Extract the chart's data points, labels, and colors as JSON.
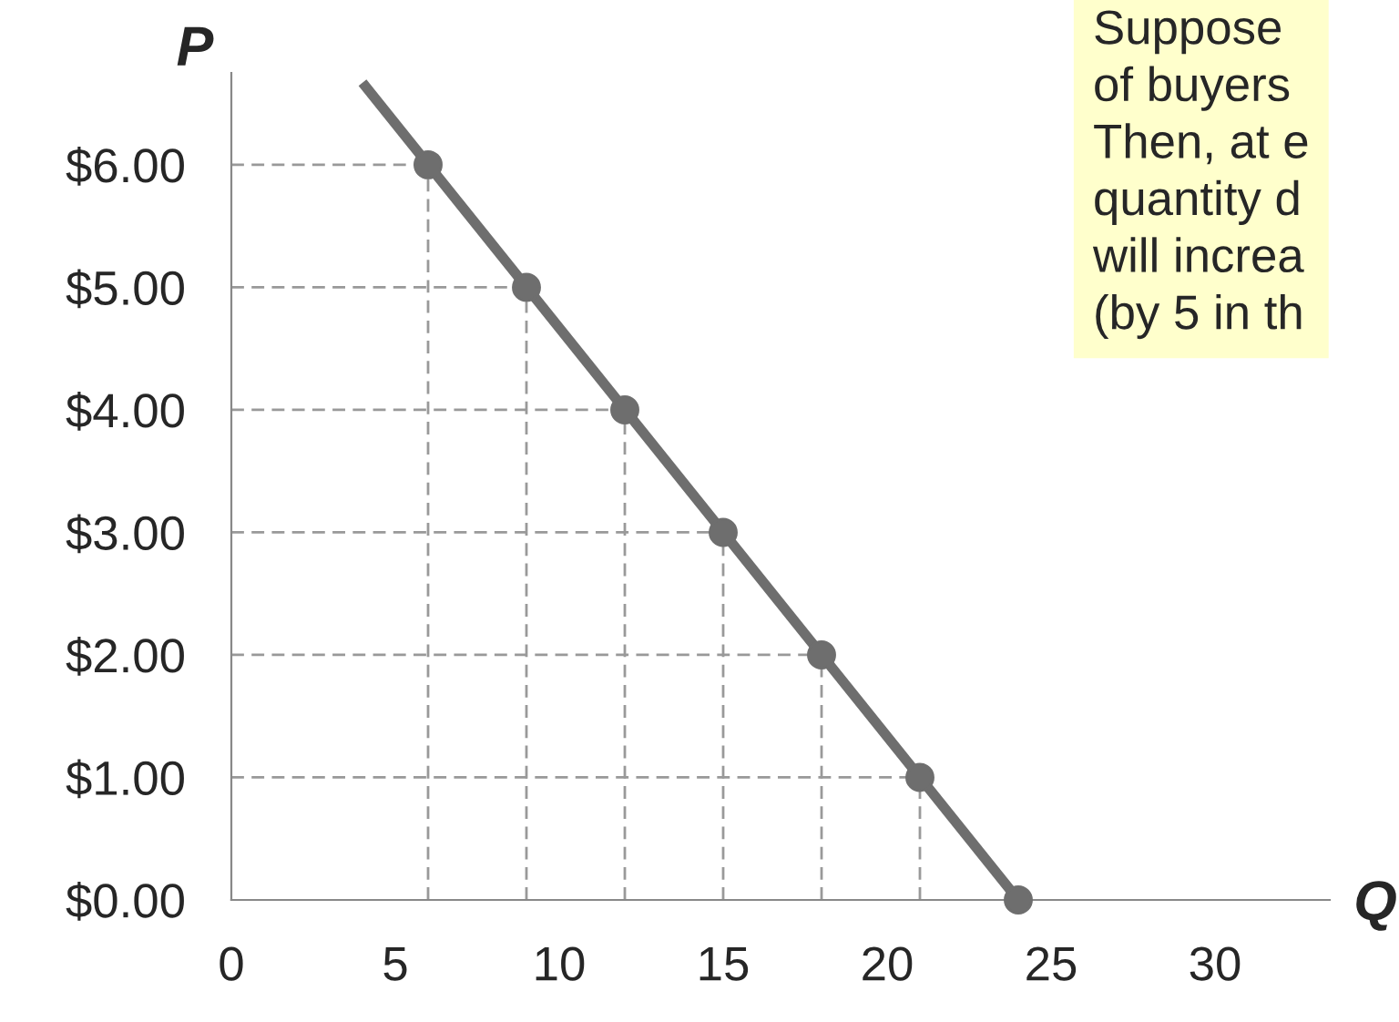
{
  "chart_data": {
    "type": "line",
    "xlabel": "Q",
    "ylabel": "P",
    "series": [
      {
        "x": [
          4,
          24
        ],
        "values": [
          6.67,
          0
        ],
        "color": "#6e6e6e",
        "marker": "none"
      },
      {
        "type": "scatter",
        "x": [
          6,
          9,
          12,
          15,
          18,
          21,
          24
        ],
        "values": [
          6,
          5,
          4,
          3,
          2,
          1,
          0
        ],
        "color": "#6e6e6e",
        "marker": "circle",
        "errors": [
          [
            0,
            6
          ],
          [
            0,
            5
          ],
          [
            0,
            4
          ],
          [
            0,
            3
          ],
          [
            0,
            2
          ],
          [
            0,
            1
          ],
          null
        ],
        "xerrors": [
          [
            0,
            6
          ],
          [
            0,
            9
          ],
          [
            0,
            12
          ],
          [
            0,
            15
          ],
          [
            0,
            18
          ],
          [
            0,
            21
          ],
          null
        ]
      }
    ],
    "xlim": [
      0,
      33.5
    ],
    "ylim": [
      0,
      6.75
    ],
    "xticks": [
      0,
      5,
      10,
      15,
      20,
      25,
      30
    ],
    "yticks": [
      {
        "value": 0,
        "label": "$0.00"
      },
      {
        "value": 1,
        "label": "$1.00"
      },
      {
        "value": 2,
        "label": "$2.00"
      },
      {
        "value": 3,
        "label": "$3.00"
      },
      {
        "value": 4,
        "label": "$4.00"
      },
      {
        "value": 5,
        "label": "$5.00"
      },
      {
        "value": 6,
        "label": "$6.00"
      }
    ],
    "grid": false,
    "annotations": [
      "Suppose\nof buyers\nThen, at e\nquantity d\nwill increa\n(by 5 in th"
    ]
  }
}
